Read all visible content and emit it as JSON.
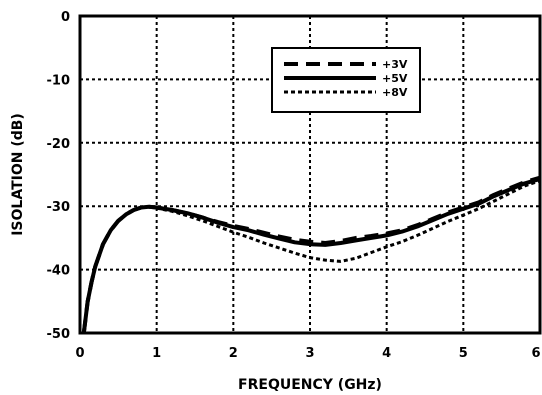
{
  "chart_data": {
    "type": "line",
    "title": "",
    "xlabel": "FREQUENCY (GHz)",
    "ylabel": "ISOLATION (dB)",
    "xlim": [
      0,
      6
    ],
    "ylim": [
      -50,
      0
    ],
    "x_ticks": [
      0,
      1,
      2,
      3,
      4,
      5,
      6
    ],
    "x_tick_labels": [
      "0",
      "1",
      "2",
      "3",
      "4",
      "5",
      "6"
    ],
    "y_ticks": [
      0,
      -10,
      -20,
      -30,
      -40,
      -50
    ],
    "y_tick_labels": [
      "0",
      "-10",
      "-20",
      "-30",
      "-40",
      "-50"
    ],
    "grid": true,
    "legend_position": "top-right",
    "series": [
      {
        "name": "+3V",
        "style": "dashed",
        "x": [
          0.05,
          0.1,
          0.15,
          0.2,
          0.3,
          0.4,
          0.5,
          0.6,
          0.7,
          0.8,
          0.9,
          1.0,
          1.2,
          1.4,
          1.6,
          1.8,
          2.0,
          2.2,
          2.4,
          2.6,
          2.8,
          3.0,
          3.2,
          3.4,
          3.6,
          3.8,
          4.0,
          4.2,
          4.4,
          4.6,
          4.8,
          5.0,
          5.2,
          5.4,
          5.6,
          5.8,
          6.0
        ],
        "y": [
          -50,
          -45,
          -42,
          -39.5,
          -36,
          -33.8,
          -32.3,
          -31.3,
          -30.6,
          -30.2,
          -30.1,
          -30.2,
          -30.6,
          -31.1,
          -31.8,
          -32.5,
          -33.1,
          -33.6,
          -34.2,
          -34.8,
          -35.3,
          -35.6,
          -35.8,
          -35.5,
          -35.0,
          -34.7,
          -34.3,
          -33.8,
          -33.0,
          -32.0,
          -31.0,
          -30.2,
          -29.4,
          -28.2,
          -27.2,
          -26.2,
          -25.5
        ]
      },
      {
        "name": "+5V",
        "style": "solid",
        "x": [
          0.05,
          0.1,
          0.15,
          0.2,
          0.3,
          0.4,
          0.5,
          0.6,
          0.7,
          0.8,
          0.9,
          1.0,
          1.2,
          1.4,
          1.6,
          1.8,
          2.0,
          2.2,
          2.4,
          2.6,
          2.8,
          3.0,
          3.2,
          3.4,
          3.6,
          3.8,
          4.0,
          4.2,
          4.4,
          4.6,
          4.8,
          5.0,
          5.2,
          5.4,
          5.6,
          5.8,
          6.0
        ],
        "y": [
          -50,
          -45,
          -42,
          -39.5,
          -36,
          -33.8,
          -32.3,
          -31.3,
          -30.6,
          -30.2,
          -30.1,
          -30.2,
          -30.6,
          -31.1,
          -31.8,
          -32.6,
          -33.3,
          -33.8,
          -34.5,
          -35.1,
          -35.7,
          -36.0,
          -36.1,
          -35.8,
          -35.4,
          -35.0,
          -34.6,
          -34.0,
          -33.2,
          -32.2,
          -31.2,
          -30.4,
          -29.6,
          -28.4,
          -27.4,
          -26.4,
          -25.7
        ]
      },
      {
        "name": "+8V",
        "style": "dotted",
        "x": [
          0.05,
          0.1,
          0.15,
          0.2,
          0.3,
          0.4,
          0.5,
          0.6,
          0.7,
          0.8,
          0.9,
          1.0,
          1.2,
          1.4,
          1.6,
          1.8,
          2.0,
          2.2,
          2.4,
          2.6,
          2.8,
          3.0,
          3.2,
          3.4,
          3.6,
          3.8,
          4.0,
          4.2,
          4.4,
          4.6,
          4.8,
          5.0,
          5.2,
          5.4,
          5.6,
          5.8,
          6.0
        ],
        "y": [
          -50,
          -45,
          -42,
          -39.5,
          -36,
          -33.8,
          -32.3,
          -31.3,
          -30.6,
          -30.2,
          -30.1,
          -30.3,
          -30.8,
          -31.5,
          -32.3,
          -33.2,
          -34.1,
          -34.9,
          -35.8,
          -36.6,
          -37.4,
          -38.1,
          -38.5,
          -38.7,
          -38.2,
          -37.3,
          -36.4,
          -35.6,
          -34.6,
          -33.5,
          -32.4,
          -31.4,
          -30.4,
          -29.2,
          -28.0,
          -26.8,
          -26.0
        ]
      }
    ]
  }
}
